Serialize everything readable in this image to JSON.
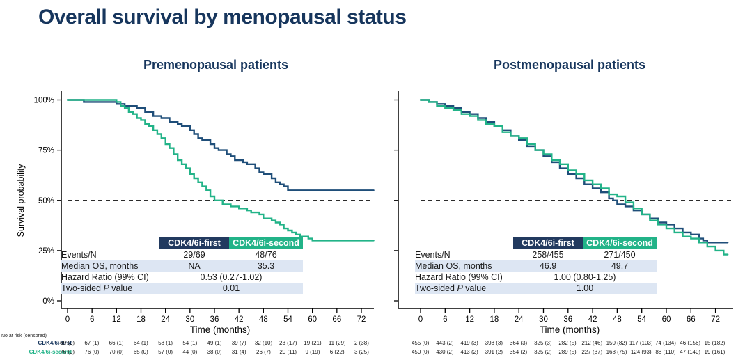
{
  "page_title": "Overall survival by menopausal status",
  "colors": {
    "navy_curve": "#1f4e79",
    "green_curve": "#22b388",
    "navy_header": "#223a5f",
    "green_header": "#22b388",
    "title_navy": "#17365d",
    "row_shade": "#dde6f3",
    "dashed_line": "#2b2b2b"
  },
  "panels": [
    {
      "subtitle": "Premenopausal patients",
      "stats": {
        "col1": "CDK4/6i-first",
        "col2": "CDK4/6i-second",
        "events_label": "Events/N",
        "events_first": "29/69",
        "events_second": "48/76",
        "median_label": "Median OS, months",
        "median_first": "NA",
        "median_second": "35.3",
        "hr_label": "Hazard Ratio (99% CI)",
        "hr_value": "0.53 (0.27-1.02)",
        "p_label_pre": "Two-sided ",
        "p_label_italic": "P",
        "p_label_post": " value",
        "p_value": "0.01"
      },
      "at_risk": {
        "first": [
          "69 (0)",
          "67 (1)",
          "66 (1)",
          "64 (1)",
          "58 (1)",
          "54 (1)",
          "49 (1)",
          "39 (7)",
          "32 (10)",
          "23 (17)",
          "19 (21)",
          "11 (29)",
          "2 (38)"
        ],
        "second": [
          "76 (0)",
          "76 (0)",
          "70 (0)",
          "65 (0)",
          "57 (0)",
          "44 (0)",
          "38 (0)",
          "31 (4)",
          "26 (7)",
          "20 (11)",
          "9 (19)",
          "6 (22)",
          "3 (25)"
        ]
      }
    },
    {
      "subtitle": "Postmenopausal patients",
      "stats": {
        "col1": "CDK4/6i-first",
        "col2": "CDK4/6i-second",
        "events_label": "Events/N",
        "events_first": "258/455",
        "events_second": "271/450",
        "median_label": "Median OS, months",
        "median_first": "46.9",
        "median_second": "49.7",
        "hr_label": "Hazard Ratio (99% CI)",
        "hr_value": "1.00 (0.80-1.25)",
        "p_label_pre": "Two-sided ",
        "p_label_italic": "P",
        "p_label_post": " value",
        "p_value": "1.00"
      },
      "at_risk": {
        "first": [
          "455 (0)",
          "443 (2)",
          "419 (3)",
          "398 (3)",
          "364 (3)",
          "325 (3)",
          "282 (5)",
          "212 (46)",
          "150 (82)",
          "117 (103)",
          "74 (134)",
          "46 (156)",
          "15 (182)"
        ],
        "second": [
          "450 (0)",
          "430 (2)",
          "413 (2)",
          "391 (2)",
          "354 (2)",
          "325 (2)",
          "289 (5)",
          "227 (37)",
          "168 (75)",
          "124 (93)",
          "88 (110)",
          "47 (140)",
          "19 (161)"
        ]
      }
    }
  ],
  "at_risk_block": {
    "caption": "No at risk (censored)",
    "row1_label": "CDK4/6i-first",
    "row2_label": "CDK4/6i-second"
  },
  "chart_data": [
    {
      "type": "line",
      "subtype": "kaplan-meier-step",
      "title": "Premenopausal patients",
      "xlabel": "Time (months)",
      "ylabel": "Survival probability",
      "xlim": [
        0,
        75
      ],
      "ylim": [
        0,
        100
      ],
      "x_ticks": [
        0,
        6,
        12,
        18,
        24,
        30,
        36,
        42,
        48,
        54,
        60,
        66,
        72
      ],
      "y_ticks": [
        "0%",
        "25%",
        "50%",
        "75%",
        "100%"
      ],
      "reference_line_y": 50,
      "grid": false,
      "legend_position": "in-table-header",
      "series": [
        {
          "name": "CDK4/6i-first",
          "color": "#1f4e79",
          "points": [
            [
              0,
              100
            ],
            [
              4,
              99
            ],
            [
              12,
              98
            ],
            [
              14,
              97
            ],
            [
              17,
              96
            ],
            [
              19,
              94
            ],
            [
              21,
              92
            ],
            [
              23,
              91
            ],
            [
              25,
              89
            ],
            [
              27,
              88
            ],
            [
              28,
              87
            ],
            [
              30,
              85
            ],
            [
              31,
              83
            ],
            [
              32,
              81
            ],
            [
              33,
              80
            ],
            [
              35,
              78
            ],
            [
              36,
              76
            ],
            [
              37,
              75
            ],
            [
              39,
              73
            ],
            [
              40,
              72
            ],
            [
              41,
              70
            ],
            [
              43,
              69
            ],
            [
              44,
              68
            ],
            [
              46,
              66
            ],
            [
              47,
              64
            ],
            [
              48,
              63
            ],
            [
              50,
              61
            ],
            [
              51,
              59
            ],
            [
              52,
              58
            ],
            [
              53,
              57
            ],
            [
              54,
              55
            ],
            [
              75,
              55
            ]
          ]
        },
        {
          "name": "CDK4/6i-second",
          "color": "#22b388",
          "points": [
            [
              0,
              100
            ],
            [
              12,
              99
            ],
            [
              13,
              97
            ],
            [
              14,
              96
            ],
            [
              15,
              94
            ],
            [
              16,
              93
            ],
            [
              17,
              91
            ],
            [
              18,
              90
            ],
            [
              19,
              88
            ],
            [
              20,
              87
            ],
            [
              21,
              85
            ],
            [
              22,
              83
            ],
            [
              23,
              81
            ],
            [
              24,
              78
            ],
            [
              25,
              76
            ],
            [
              26,
              73
            ],
            [
              27,
              70
            ],
            [
              28,
              68
            ],
            [
              29,
              66
            ],
            [
              30,
              63
            ],
            [
              31,
              61
            ],
            [
              32,
              59
            ],
            [
              33,
              57
            ],
            [
              34,
              55
            ],
            [
              35,
              52
            ],
            [
              36,
              50
            ],
            [
              38,
              48
            ],
            [
              40,
              47
            ],
            [
              42,
              46
            ],
            [
              44,
              45
            ],
            [
              45,
              44
            ],
            [
              47,
              43
            ],
            [
              48,
              41
            ],
            [
              50,
              40
            ],
            [
              51,
              39
            ],
            [
              52,
              38
            ],
            [
              53,
              36
            ],
            [
              54,
              35
            ],
            [
              55,
              34
            ],
            [
              56,
              33
            ],
            [
              57,
              32
            ],
            [
              59,
              31
            ],
            [
              60,
              30
            ],
            [
              75,
              30
            ]
          ]
        }
      ]
    },
    {
      "type": "line",
      "subtype": "kaplan-meier-step",
      "title": "Postmenopausal patients",
      "xlabel": "Time (months)",
      "ylabel": "Survival probability",
      "xlim": [
        0,
        75
      ],
      "ylim": [
        0,
        100
      ],
      "x_ticks": [
        0,
        6,
        12,
        18,
        24,
        30,
        36,
        42,
        48,
        54,
        60,
        66,
        72
      ],
      "y_ticks": [
        "0%",
        "25%",
        "50%",
        "75%",
        "100%"
      ],
      "reference_line_y": 50,
      "grid": false,
      "legend_position": "in-table-header",
      "series": [
        {
          "name": "CDK4/6i-first",
          "color": "#1f4e79",
          "points": [
            [
              0,
              100
            ],
            [
              2,
              99
            ],
            [
              4,
              98
            ],
            [
              6,
              97
            ],
            [
              8,
              96
            ],
            [
              10,
              94
            ],
            [
              12,
              93
            ],
            [
              14,
              91
            ],
            [
              16,
              89
            ],
            [
              18,
              87
            ],
            [
              20,
              85
            ],
            [
              22,
              82
            ],
            [
              24,
              80
            ],
            [
              26,
              77
            ],
            [
              28,
              75
            ],
            [
              30,
              72
            ],
            [
              32,
              69
            ],
            [
              34,
              66
            ],
            [
              36,
              63
            ],
            [
              38,
              61
            ],
            [
              40,
              58
            ],
            [
              42,
              56
            ],
            [
              44,
              54
            ],
            [
              46,
              51
            ],
            [
              47,
              50
            ],
            [
              48,
              48
            ],
            [
              50,
              47
            ],
            [
              52,
              45
            ],
            [
              54,
              43
            ],
            [
              56,
              41
            ],
            [
              58,
              39
            ],
            [
              60,
              38
            ],
            [
              62,
              36
            ],
            [
              64,
              34
            ],
            [
              66,
              33
            ],
            [
              68,
              31
            ],
            [
              69,
              30
            ],
            [
              70,
              29
            ],
            [
              75,
              29
            ]
          ]
        },
        {
          "name": "CDK4/6i-second",
          "color": "#22b388",
          "points": [
            [
              0,
              100
            ],
            [
              2,
              99
            ],
            [
              4,
              97
            ],
            [
              6,
              96
            ],
            [
              8,
              95
            ],
            [
              10,
              93
            ],
            [
              12,
              92
            ],
            [
              14,
              90
            ],
            [
              16,
              88
            ],
            [
              18,
              87
            ],
            [
              20,
              84
            ],
            [
              22,
              82
            ],
            [
              24,
              81
            ],
            [
              26,
              78
            ],
            [
              28,
              75
            ],
            [
              30,
              73
            ],
            [
              32,
              70
            ],
            [
              34,
              68
            ],
            [
              36,
              65
            ],
            [
              38,
              63
            ],
            [
              40,
              60
            ],
            [
              42,
              58
            ],
            [
              44,
              56
            ],
            [
              46,
              53
            ],
            [
              48,
              52
            ],
            [
              50,
              49
            ],
            [
              52,
              46
            ],
            [
              54,
              43
            ],
            [
              56,
              40
            ],
            [
              58,
              38
            ],
            [
              60,
              36
            ],
            [
              62,
              34
            ],
            [
              64,
              32
            ],
            [
              66,
              31
            ],
            [
              68,
              29
            ],
            [
              70,
              27
            ],
            [
              72,
              25
            ],
            [
              74,
              23
            ],
            [
              75,
              23
            ]
          ]
        }
      ]
    }
  ]
}
